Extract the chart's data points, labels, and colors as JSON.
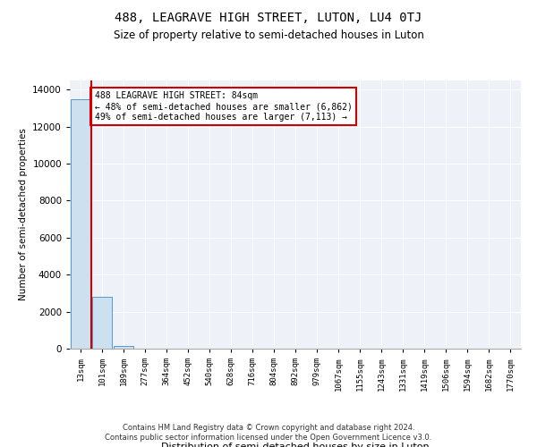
{
  "title": "488, LEAGRAVE HIGH STREET, LUTON, LU4 0TJ",
  "subtitle": "Size of property relative to semi-detached houses in Luton",
  "xlabel": "Distribution of semi-detached houses by size in Luton",
  "ylabel": "Number of semi-detached properties",
  "categories": [
    "13sqm",
    "101sqm",
    "189sqm",
    "277sqm",
    "364sqm",
    "452sqm",
    "540sqm",
    "628sqm",
    "716sqm",
    "804sqm",
    "892sqm",
    "979sqm",
    "1067sqm",
    "1155sqm",
    "1243sqm",
    "1331sqm",
    "1419sqm",
    "1506sqm",
    "1594sqm",
    "1682sqm",
    "1770sqm"
  ],
  "values": [
    13500,
    2800,
    150,
    0,
    0,
    0,
    0,
    0,
    0,
    0,
    0,
    0,
    0,
    0,
    0,
    0,
    0,
    0,
    0,
    0,
    0
  ],
  "bar_color": "#cce0f0",
  "bar_edge_color": "#5599cc",
  "property_line_color": "#cc0000",
  "annotation_text": "488 LEAGRAVE HIGH STREET: 84sqm\n← 48% of semi-detached houses are smaller (6,862)\n49% of semi-detached houses are larger (7,113) →",
  "annotation_box_color": "#ffffff",
  "annotation_box_edge": "#cc0000",
  "ylim": [
    0,
    14500
  ],
  "yticks": [
    0,
    2000,
    4000,
    6000,
    8000,
    10000,
    12000,
    14000
  ],
  "background_color": "#eef2f8",
  "footer_line1": "Contains HM Land Registry data © Crown copyright and database right 2024.",
  "footer_line2": "Contains public sector information licensed under the Open Government Licence v3.0."
}
